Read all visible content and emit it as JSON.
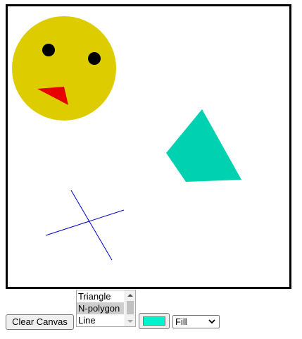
{
  "canvas": {
    "background": "#ffffff",
    "border_color": "#000000",
    "shapes": [
      {
        "kind": "circle",
        "name": "yellow-circle",
        "color": "#dccc00"
      },
      {
        "kind": "circle",
        "name": "left-eye",
        "color": "#000000"
      },
      {
        "kind": "circle",
        "name": "right-eye",
        "color": "#000000"
      },
      {
        "kind": "triangle",
        "name": "red-triangle",
        "color": "#e60000"
      },
      {
        "kind": "n-polygon",
        "name": "teal-quadrilateral",
        "color": "#00d1b0"
      },
      {
        "kind": "line",
        "name": "blue-line-1",
        "color": "#0000cc"
      },
      {
        "kind": "line",
        "name": "blue-line-2",
        "color": "#0000cc"
      }
    ]
  },
  "controls": {
    "clear_label": "Clear Canvas",
    "shape_options": [
      "Triangle",
      "N-polygon",
      "Line"
    ],
    "shape_selected": "N-polygon",
    "color_value": "#00f2cc",
    "mode_value": "Fill"
  }
}
